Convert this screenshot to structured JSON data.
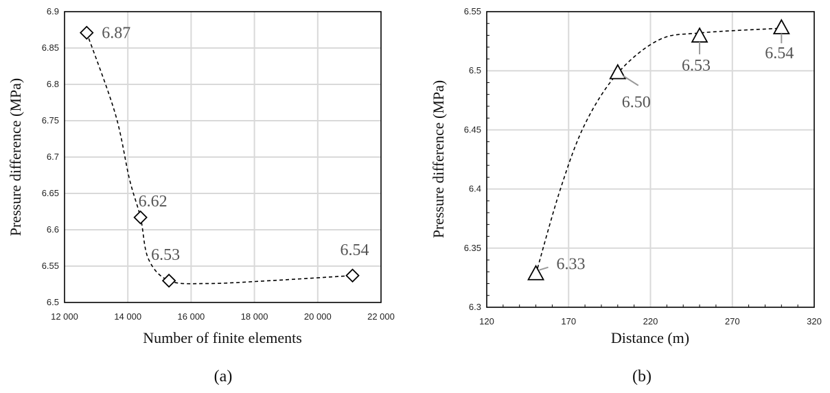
{
  "chart_data": [
    {
      "type": "scatter",
      "caption": "(a)",
      "xlabel": "Number of finite elements",
      "ylabel": "Pressure difference (MPa)",
      "xlim": [
        12000,
        22000
      ],
      "ylim": [
        6.5,
        6.9
      ],
      "xticks": [
        12000,
        14000,
        16000,
        18000,
        20000,
        22000
      ],
      "xtick_labels": [
        "12 000",
        "14 000",
        "16 000",
        "18 000",
        "20 000",
        "22 000"
      ],
      "yticks": [
        6.5,
        6.55,
        6.6,
        6.65,
        6.7,
        6.75,
        6.8,
        6.85,
        6.9
      ],
      "ytick_labels": [
        "6.5",
        "6.55",
        "6.6",
        "6.65",
        "6.7",
        "6.75",
        "6.8",
        "6.85",
        "6.9"
      ],
      "grid": true,
      "marker": "diamond",
      "trendline": "dashed smooth",
      "points": [
        {
          "x": 12700,
          "y": 6.871,
          "label": "6.87"
        },
        {
          "x": 14400,
          "y": 6.617,
          "label": "6.62"
        },
        {
          "x": 15300,
          "y": 6.53,
          "label": "6.53"
        },
        {
          "x": 21100,
          "y": 6.537,
          "label": "6.54"
        }
      ]
    },
    {
      "type": "scatter",
      "caption": "(b)",
      "xlabel": "Distance (m)",
      "ylabel": "Pressure difference (MPa)",
      "xlim": [
        120,
        320
      ],
      "ylim": [
        6.3,
        6.55
      ],
      "xticks": [
        120,
        170,
        220,
        270,
        320
      ],
      "xtick_labels": [
        "120",
        "170",
        "220",
        "270",
        "320"
      ],
      "yticks": [
        6.3,
        6.35,
        6.4,
        6.45,
        6.5,
        6.55
      ],
      "ytick_labels": [
        "6.3",
        "6.35",
        "6.4",
        "6.45",
        "6.5",
        "6.55"
      ],
      "grid": true,
      "marker": "triangle",
      "trendline": "dashed smooth",
      "points": [
        {
          "x": 150,
          "y": 6.328,
          "label": "6.33"
        },
        {
          "x": 200,
          "y": 6.498,
          "label": "6.50"
        },
        {
          "x": 250,
          "y": 6.529,
          "label": "6.53"
        },
        {
          "x": 300,
          "y": 6.536,
          "label": "6.54"
        }
      ]
    }
  ]
}
